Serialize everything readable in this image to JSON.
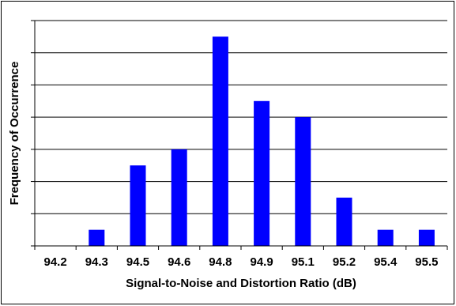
{
  "chart_data": {
    "type": "bar",
    "title": "",
    "xlabel": "Signal-to-Noise and Distortion Ratio (dB)",
    "ylabel": "Frequency of Occurrence",
    "categories": [
      "94.2",
      "94.3",
      "94.5",
      "94.6",
      "94.8",
      "94.9",
      "95.1",
      "95.2",
      "95.4",
      "95.5"
    ],
    "values": [
      0,
      1,
      5,
      6,
      13,
      9,
      8,
      3,
      1,
      1
    ],
    "ylim": [
      0,
      14
    ],
    "y_tick_step": 2,
    "y_tick_labels_shown": false,
    "grid": "horizontal",
    "legend": "none",
    "bar_color": "#0000FF",
    "gridline_color": "#000000"
  }
}
